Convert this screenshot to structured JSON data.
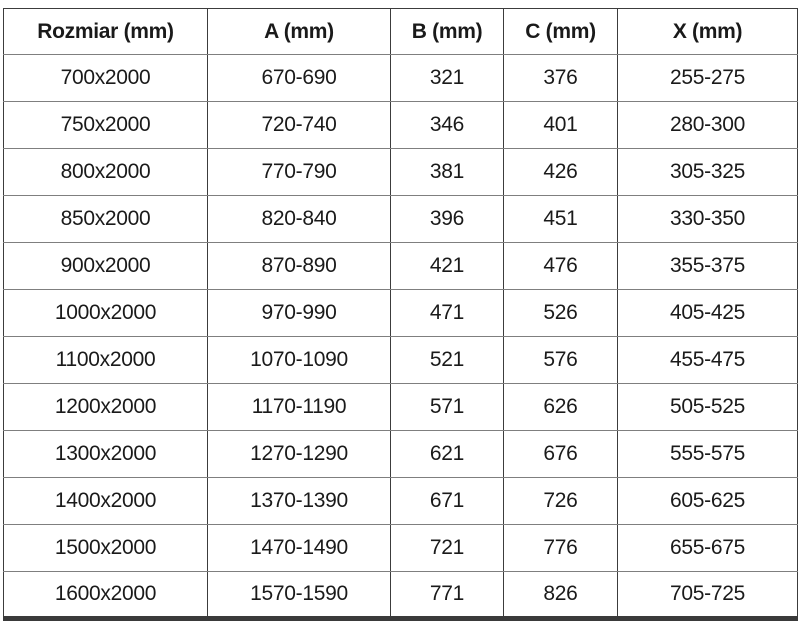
{
  "page": {
    "background_color": "#ffffff",
    "text_color": "#1a1a1a",
    "grid_horizontal_color": "#7f7f7f",
    "grid_vertical_color": "#3c3c3c"
  },
  "chart_data": {
    "type": "table",
    "columns": [
      "Rozmiar (mm)",
      "A (mm)",
      "B (mm)",
      "C (mm)",
      "X (mm)"
    ],
    "rows": [
      [
        "700x2000",
        "670-690",
        "321",
        "376",
        "255-275"
      ],
      [
        "750x2000",
        "720-740",
        "346",
        "401",
        "280-300"
      ],
      [
        "800x2000",
        "770-790",
        "381",
        "426",
        "305-325"
      ],
      [
        "850x2000",
        "820-840",
        "396",
        "451",
        "330-350"
      ],
      [
        "900x2000",
        "870-890",
        "421",
        "476",
        "355-375"
      ],
      [
        "1000x2000",
        "970-990",
        "471",
        "526",
        "405-425"
      ],
      [
        "1100x2000",
        "1070-1090",
        "521",
        "576",
        "455-475"
      ],
      [
        "1200x2000",
        "1170-1190",
        "571",
        "626",
        "505-525"
      ],
      [
        "1300x2000",
        "1270-1290",
        "621",
        "676",
        "555-575"
      ],
      [
        "1400x2000",
        "1370-1390",
        "671",
        "726",
        "605-625"
      ],
      [
        "1500x2000",
        "1470-1490",
        "721",
        "776",
        "655-675"
      ],
      [
        "1600x2000",
        "1570-1590",
        "771",
        "826",
        "705-725"
      ]
    ]
  }
}
